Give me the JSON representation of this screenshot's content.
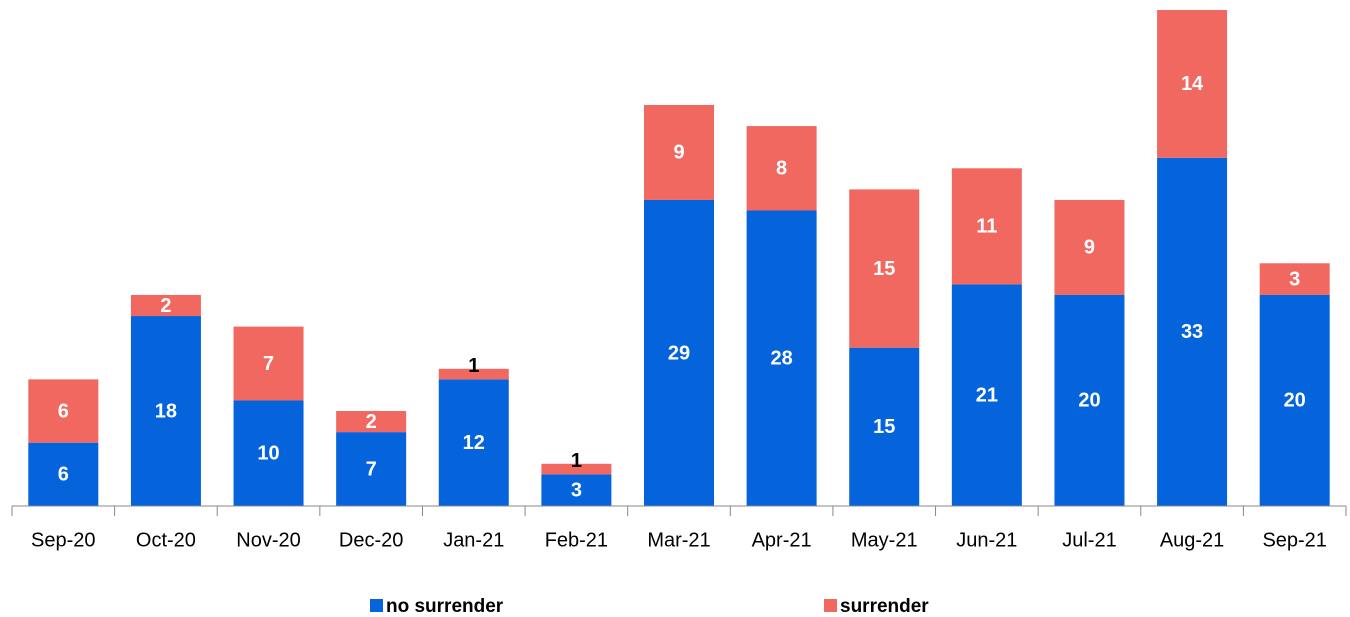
{
  "chart_data": {
    "type": "stacked_bar",
    "categories": [
      "Sep-20",
      "Oct-20",
      "Nov-20",
      "Dec-20",
      "Jan-21",
      "Feb-21",
      "Mar-21",
      "Apr-21",
      "May-21",
      "Jun-21",
      "Jul-21",
      "Aug-21",
      "Sep-21"
    ],
    "series": [
      {
        "name": "no surrender",
        "color": "#0563db",
        "values": [
          6,
          18,
          10,
          7,
          12,
          3,
          29,
          28,
          15,
          21,
          20,
          33,
          20
        ]
      },
      {
        "name": "surrender",
        "color": "#f06860",
        "values": [
          6,
          2,
          7,
          2,
          1,
          1,
          9,
          8,
          15,
          11,
          9,
          14,
          3
        ]
      }
    ],
    "legend": "bottom"
  }
}
